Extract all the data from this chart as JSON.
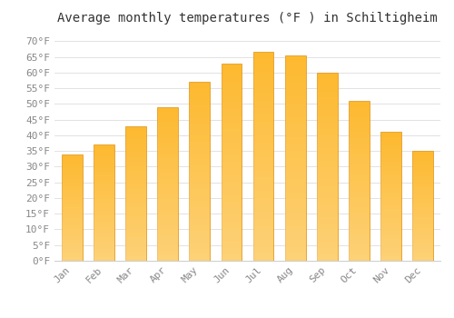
{
  "title": "Average monthly temperatures (°F ) in Schiltigheim",
  "months": [
    "Jan",
    "Feb",
    "Mar",
    "Apr",
    "May",
    "Jun",
    "Jul",
    "Aug",
    "Sep",
    "Oct",
    "Nov",
    "Dec"
  ],
  "values": [
    34,
    37,
    43,
    49,
    57,
    63,
    66.5,
    65.5,
    60,
    51,
    41,
    35
  ],
  "bar_color_top": "#FFD966",
  "bar_color_bottom": "#F5A623",
  "bar_color_face": "#FDB92E",
  "bar_color_edge": "#E09010",
  "background_color": "#FFFFFF",
  "plot_bg_color": "#FFFFFF",
  "grid_color": "#DDDDDD",
  "ytick_labels": [
    "0°F",
    "5°F",
    "10°F",
    "15°F",
    "20°F",
    "25°F",
    "30°F",
    "35°F",
    "40°F",
    "45°F",
    "50°F",
    "55°F",
    "60°F",
    "65°F",
    "70°F"
  ],
  "ytick_values": [
    0,
    5,
    10,
    15,
    20,
    25,
    30,
    35,
    40,
    45,
    50,
    55,
    60,
    65,
    70
  ],
  "ylim": [
    0,
    73
  ],
  "title_fontsize": 10,
  "tick_fontsize": 8,
  "tick_color": "#888888",
  "spine_color": "#CCCCCC",
  "figsize": [
    5.0,
    3.5
  ],
  "dpi": 100
}
